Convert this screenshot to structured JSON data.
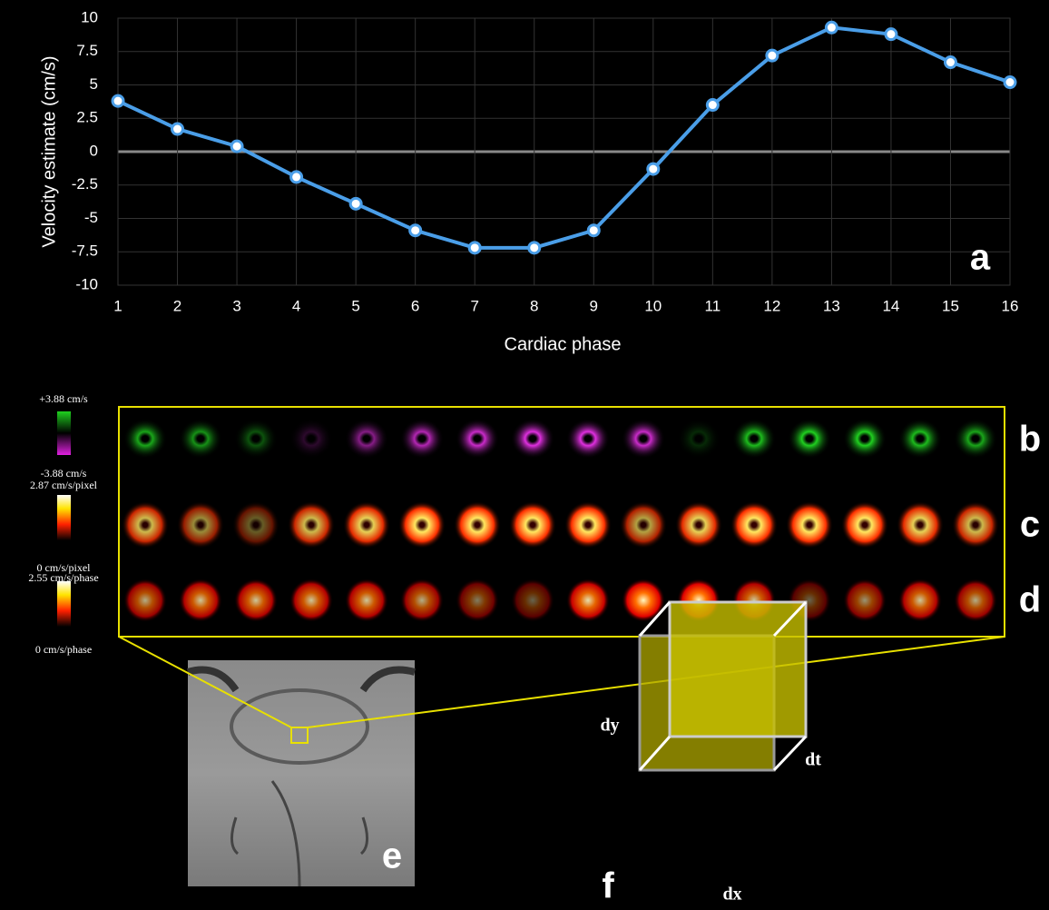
{
  "chart_data": {
    "type": "line",
    "panel_label": "a",
    "xlabel": "Cardiac phase",
    "ylabel": "Velocity estimate (cm/s)",
    "x": [
      1,
      2,
      3,
      4,
      5,
      6,
      7,
      8,
      9,
      10,
      11,
      12,
      13,
      14,
      15,
      16
    ],
    "series": [
      {
        "color": "#4a9ee8",
        "values": [
          3.8,
          1.7,
          0.4,
          -1.9,
          -3.9,
          -5.9,
          -7.2,
          -7.2,
          -5.9,
          -1.3,
          3.5,
          7.2,
          9.3,
          8.8,
          6.7,
          5.2
        ]
      }
    ],
    "xlim": [
      1,
      16
    ],
    "xticks": [
      1,
      2,
      3,
      4,
      5,
      6,
      7,
      8,
      9,
      10,
      11,
      12,
      13,
      14,
      15,
      16
    ],
    "ylim": [
      -10,
      10
    ],
    "yticks": [
      -10,
      -7.5,
      -5,
      -2.5,
      0,
      2.5,
      5,
      7.5,
      10
    ],
    "grid": true
  },
  "colorbars": [
    {
      "max_label": "+3.88 cm/s",
      "min_label": "-3.88 cm/s"
    },
    {
      "max_label": "2.87 cm/s/pixel",
      "min_label": "0 cm/s/pixel"
    },
    {
      "max_label": "2.55 cm/s/phase",
      "min_label": "0 cm/s/phase"
    }
  ],
  "row_labels": [
    "b",
    "c",
    "d"
  ],
  "image_label": "e",
  "cube": {
    "label": "f",
    "dx": "dx",
    "dy": "dy",
    "dt": "dt"
  }
}
